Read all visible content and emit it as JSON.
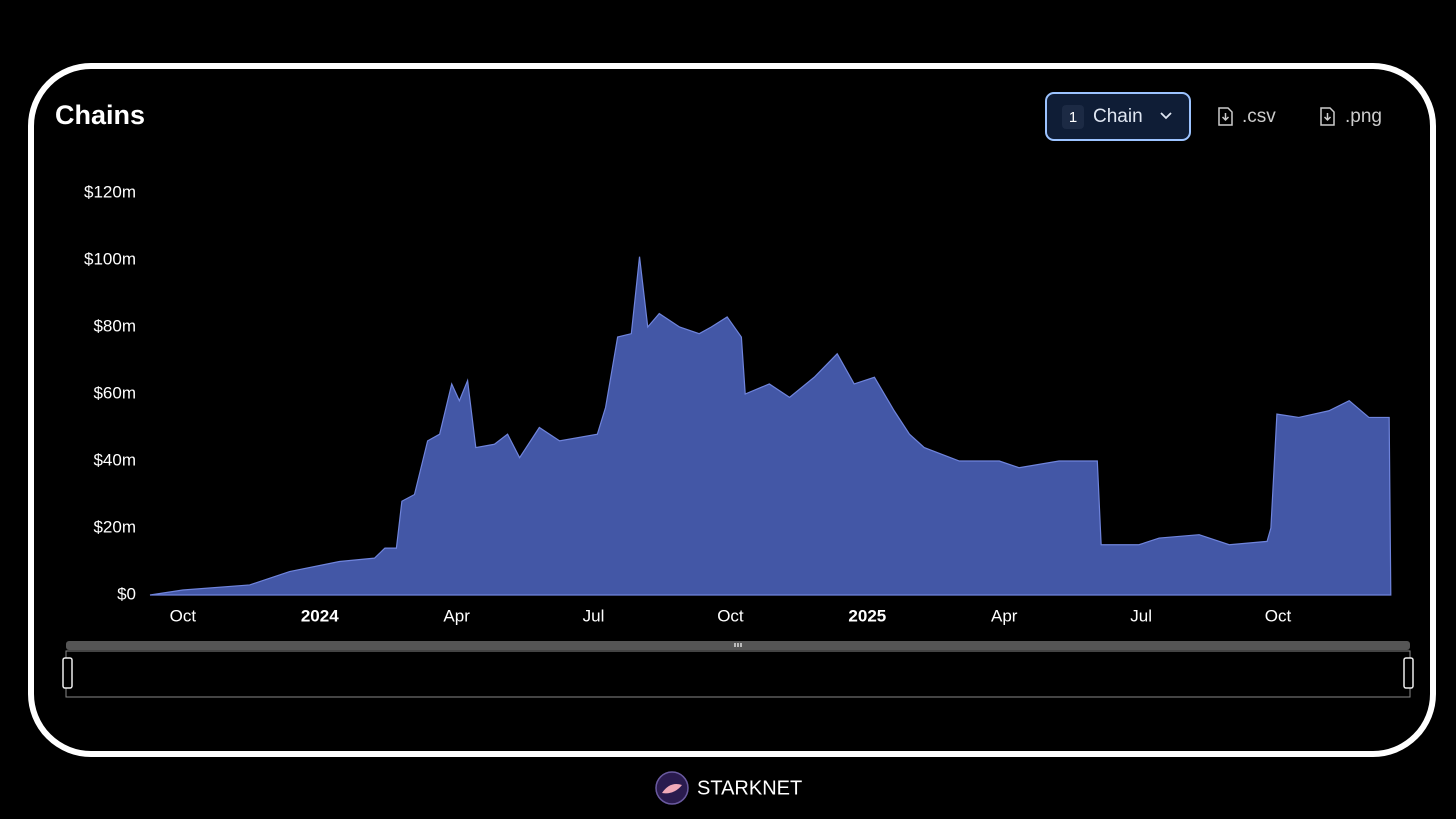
{
  "chart_data": {
    "type": "area",
    "title": "Chains",
    "x": [
      2023.69,
      2023.75,
      2023.872,
      2023.945,
      2024.036,
      2024.1,
      2024.119,
      2024.14,
      2024.15,
      2024.173,
      2024.197,
      2024.219,
      2024.241,
      2024.255,
      2024.27,
      2024.285,
      2024.319,
      2024.343,
      2024.365,
      2024.401,
      2024.438,
      2024.507,
      2024.522,
      2024.544,
      2024.569,
      2024.584,
      2024.599,
      2024.62,
      2024.657,
      2024.693,
      2024.715,
      2024.744,
      2024.77,
      2024.777,
      2024.821,
      2024.858,
      2024.903,
      2024.945,
      2024.976,
      2025.013,
      2025.049,
      2025.077,
      2025.104,
      2025.168,
      2025.241,
      2025.277,
      2025.35,
      2025.42,
      2025.427,
      2025.496,
      2025.533,
      2025.606,
      2025.661,
      2025.73,
      2025.737,
      2025.748,
      2025.788,
      2025.843,
      2025.88,
      2025.916,
      2025.953,
      2025.956
    ],
    "values": [
      0,
      1.5,
      3,
      7,
      10,
      11,
      14,
      14,
      28,
      30,
      46,
      48,
      63,
      58,
      64,
      44,
      45,
      48,
      41,
      50,
      46,
      48,
      56,
      77,
      78,
      101,
      80,
      84,
      80,
      78,
      80,
      83,
      77,
      60,
      63,
      59,
      65,
      72,
      63,
      65,
      55,
      48,
      44,
      40,
      40,
      38,
      40,
      40,
      15,
      15,
      17,
      18,
      15,
      16,
      20,
      54,
      53,
      55,
      58,
      53,
      53,
      0
    ],
    "color": "#4357a6",
    "line_color": "#6f84dc",
    "xlim": [
      2023.69,
      2025.96
    ],
    "xticks": [
      {
        "value": 2023.75,
        "label": "Oct"
      },
      {
        "value": 2024,
        "label": "2024"
      },
      {
        "value": 2024.25,
        "label": "Apr"
      },
      {
        "value": 2024.5,
        "label": "Jul"
      },
      {
        "value": 2024.75,
        "label": "Oct"
      },
      {
        "value": 2025,
        "label": "2025"
      },
      {
        "value": 2025.25,
        "label": "Apr"
      },
      {
        "value": 2025.5,
        "label": "Jul"
      },
      {
        "value": 2025.75,
        "label": "Oct"
      }
    ],
    "ylim": [
      0,
      120
    ],
    "yticks": [
      {
        "value": 0,
        "label": "$0"
      },
      {
        "value": 20,
        "label": "$20m"
      },
      {
        "value": 40,
        "label": "$40m"
      },
      {
        "value": 60,
        "label": "$60m"
      },
      {
        "value": 80,
        "label": "$80m"
      },
      {
        "value": 100,
        "label": "$100m"
      },
      {
        "value": 120,
        "label": "$120m"
      }
    ],
    "grid": false
  },
  "controls": {
    "count": "1",
    "selector": "Chain",
    "csv": ".csv",
    "png": ".png"
  },
  "footer": {
    "brand": "STARKNET"
  }
}
